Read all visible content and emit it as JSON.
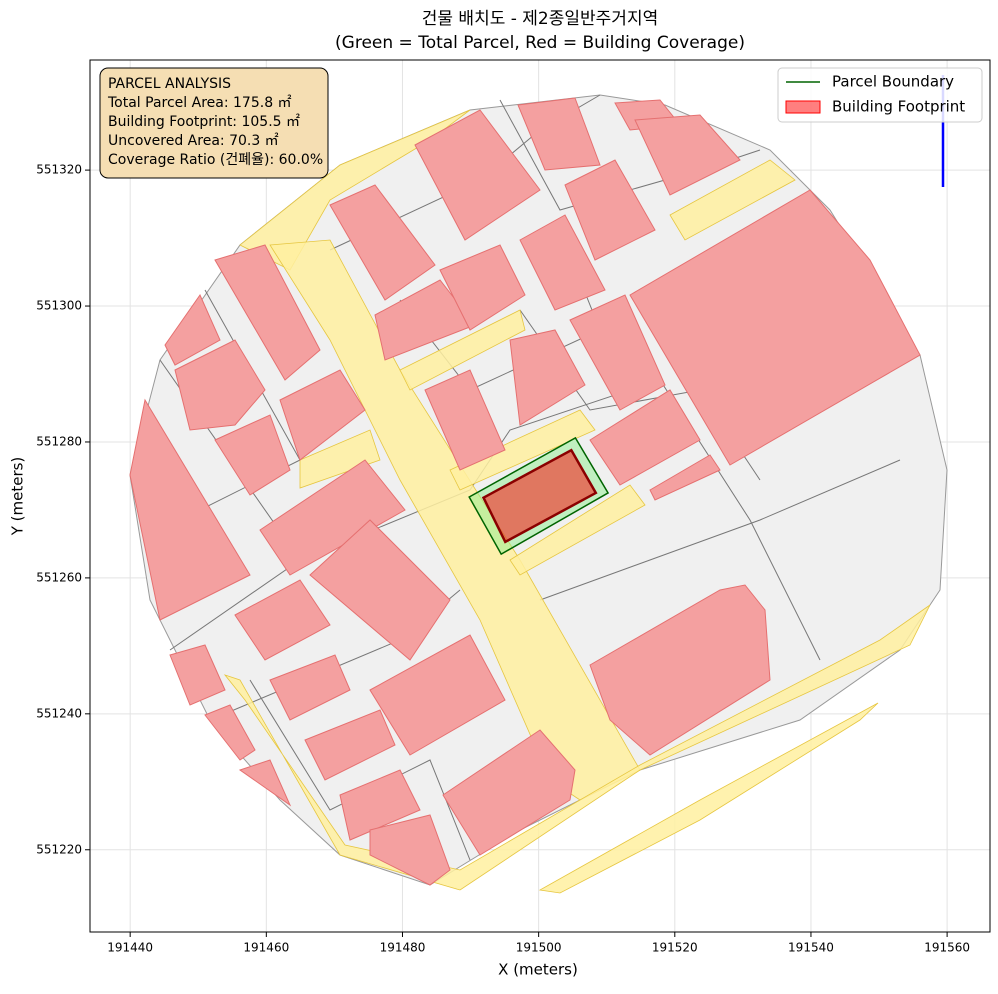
{
  "chart_data": {
    "type": "map",
    "title": "건물 배치도 - 제2종일반주거지역",
    "subtitle": "(Green = Total Parcel, Red = Building Coverage)",
    "x_label": "X (meters)",
    "y_label": "Y (meters)",
    "xlim": [
      191434.1,
      191566.3
    ],
    "ylim": [
      551207.9,
      551336.2
    ],
    "xticks": [
      191440,
      191460,
      191480,
      191500,
      191520,
      191540,
      191560
    ],
    "yticks": [
      551220,
      551240,
      551260,
      551280,
      551300,
      551320
    ],
    "grid": true,
    "legend": "upper right",
    "series": [
      {
        "name": "Parcel Boundary",
        "color": "#006400",
        "fill": "#90ee90",
        "x": [
          191489.8,
          191505.4,
          191510.2,
          191494.5
        ],
        "y": [
          551271.9,
          551280.6,
          551272.5,
          551263.5
        ]
      },
      {
        "name": "Building Footprint",
        "color": "#8b0000",
        "fill": "#ff0000",
        "x": [
          191491.9,
          191504.8,
          191508.4,
          191495.1
        ],
        "y": [
          551271.8,
          551278.8,
          551272.5,
          551265.3
        ]
      }
    ],
    "info_box": {
      "heading": "PARCEL ANALYSIS",
      "lines": [
        "Total Parcel Area: 175.8 ㎡",
        "Building Footprint: 105.5 ㎡",
        "Uncovered Area: 70.3 ㎡",
        "Coverage Ratio (건폐율): 60.0%"
      ]
    }
  }
}
